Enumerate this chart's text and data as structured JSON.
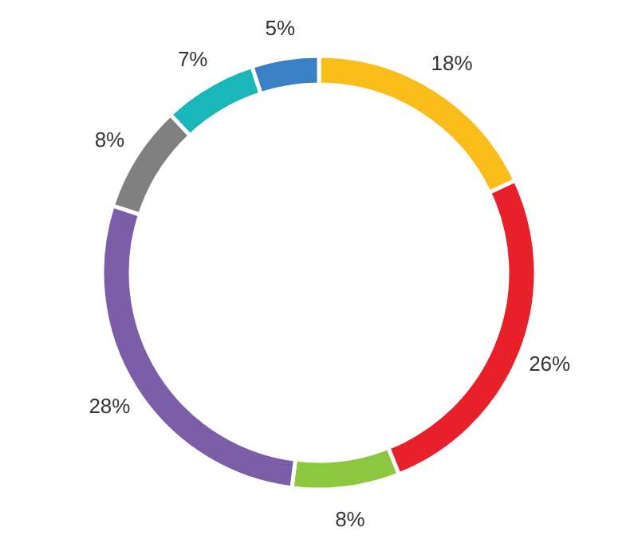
{
  "chart_data": {
    "type": "donut",
    "categories": [
      null,
      null,
      null,
      null,
      null,
      null,
      null
    ],
    "values": [
      18,
      26,
      8,
      28,
      8,
      7,
      5
    ],
    "colors": [
      "#fbbd19",
      "#e8202a",
      "#8dc63f",
      "#7b5ea7",
      "#808080",
      "#19b7b9",
      "#3a80c4"
    ],
    "value_labels": [
      "18%",
      "26%",
      "8%",
      "28%",
      "8%",
      "7%",
      "5%"
    ]
  }
}
